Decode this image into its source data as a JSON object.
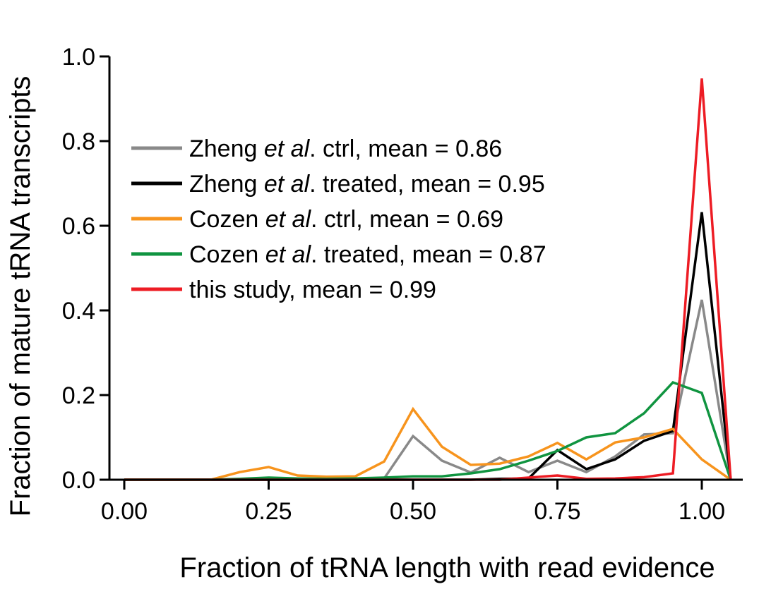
{
  "chart_data": {
    "type": "line",
    "title": "",
    "xlabel": "Fraction of tRNA length with read evidence",
    "ylabel": "Fraction of mature tRNA transcripts",
    "xlim": [
      0.0,
      1.05
    ],
    "ylim": [
      0.0,
      1.0
    ],
    "xticks": [
      "0.00",
      "0.25",
      "0.50",
      "0.75",
      "1.00"
    ],
    "xtick_values": [
      0.0,
      0.25,
      0.5,
      0.75,
      1.0
    ],
    "yticks": [
      "0.0",
      "0.2",
      "0.4",
      "0.6",
      "0.8",
      "1.0"
    ],
    "ytick_values": [
      0.0,
      0.2,
      0.4,
      0.6,
      0.8,
      1.0
    ],
    "grid": false,
    "legend_position": "upper-left",
    "x": [
      0.0,
      0.05,
      0.1,
      0.15,
      0.2,
      0.25,
      0.3,
      0.35,
      0.4,
      0.45,
      0.5,
      0.55,
      0.6,
      0.65,
      0.7,
      0.75,
      0.8,
      0.85,
      0.9,
      0.95,
      1.0,
      1.05
    ],
    "series": [
      {
        "name": "Zheng et al. ctrl, mean = 0.86",
        "legend_parts": [
          "Zheng ",
          "et al",
          ". ctrl, mean = 0.86"
        ],
        "color": "#898989",
        "values": [
          0.0,
          0.0,
          0.0,
          0.0,
          0.0,
          0.0,
          0.0,
          0.0,
          0.002,
          0.003,
          0.103,
          0.045,
          0.017,
          0.052,
          0.018,
          0.045,
          0.018,
          0.055,
          0.107,
          0.11,
          0.425,
          0.0
        ]
      },
      {
        "name": "Zheng et al. treated, mean = 0.95",
        "legend_parts": [
          "Zheng ",
          "et al",
          ". treated, mean = 0.95"
        ],
        "color": "#000000",
        "values": [
          0.0,
          0.0,
          0.0,
          0.0,
          0.0,
          0.0,
          0.0,
          0.0,
          0.0,
          0.0,
          0.0,
          0.0,
          0.0,
          0.002,
          0.003,
          0.07,
          0.025,
          0.048,
          0.092,
          0.115,
          0.632,
          0.0
        ]
      },
      {
        "name": "Cozen et al. ctrl, mean = 0.69",
        "legend_parts": [
          "Cozen ",
          "et al",
          ". ctrl, mean = 0.69"
        ],
        "color": "#f7941d",
        "values": [
          0.0,
          0.0,
          0.0,
          0.0,
          0.018,
          0.03,
          0.01,
          0.007,
          0.008,
          0.043,
          0.167,
          0.078,
          0.035,
          0.038,
          0.055,
          0.087,
          0.048,
          0.088,
          0.1,
          0.12,
          0.048,
          0.0
        ]
      },
      {
        "name": "Cozen et al. treated, mean = 0.87",
        "legend_parts": [
          "Cozen ",
          "et al",
          ". treated, mean = 0.87"
        ],
        "color": "#109440",
        "values": [
          0.0,
          0.0,
          0.0,
          0.0,
          0.002,
          0.005,
          0.003,
          0.002,
          0.003,
          0.005,
          0.008,
          0.008,
          0.015,
          0.025,
          0.045,
          0.068,
          0.1,
          0.11,
          0.157,
          0.23,
          0.205,
          0.0
        ]
      },
      {
        "name": "this study, mean = 0.99",
        "legend_parts": [
          "this study, mean = 0.99",
          "",
          ""
        ],
        "color": "#ed1c24",
        "values": [
          0.0,
          0.0,
          0.0,
          0.0,
          0.0,
          0.0,
          0.0,
          0.0,
          0.0,
          0.0,
          0.0,
          0.0,
          0.0,
          0.0,
          0.005,
          0.01,
          0.002,
          0.003,
          0.006,
          0.015,
          0.948,
          0.0
        ]
      }
    ]
  }
}
